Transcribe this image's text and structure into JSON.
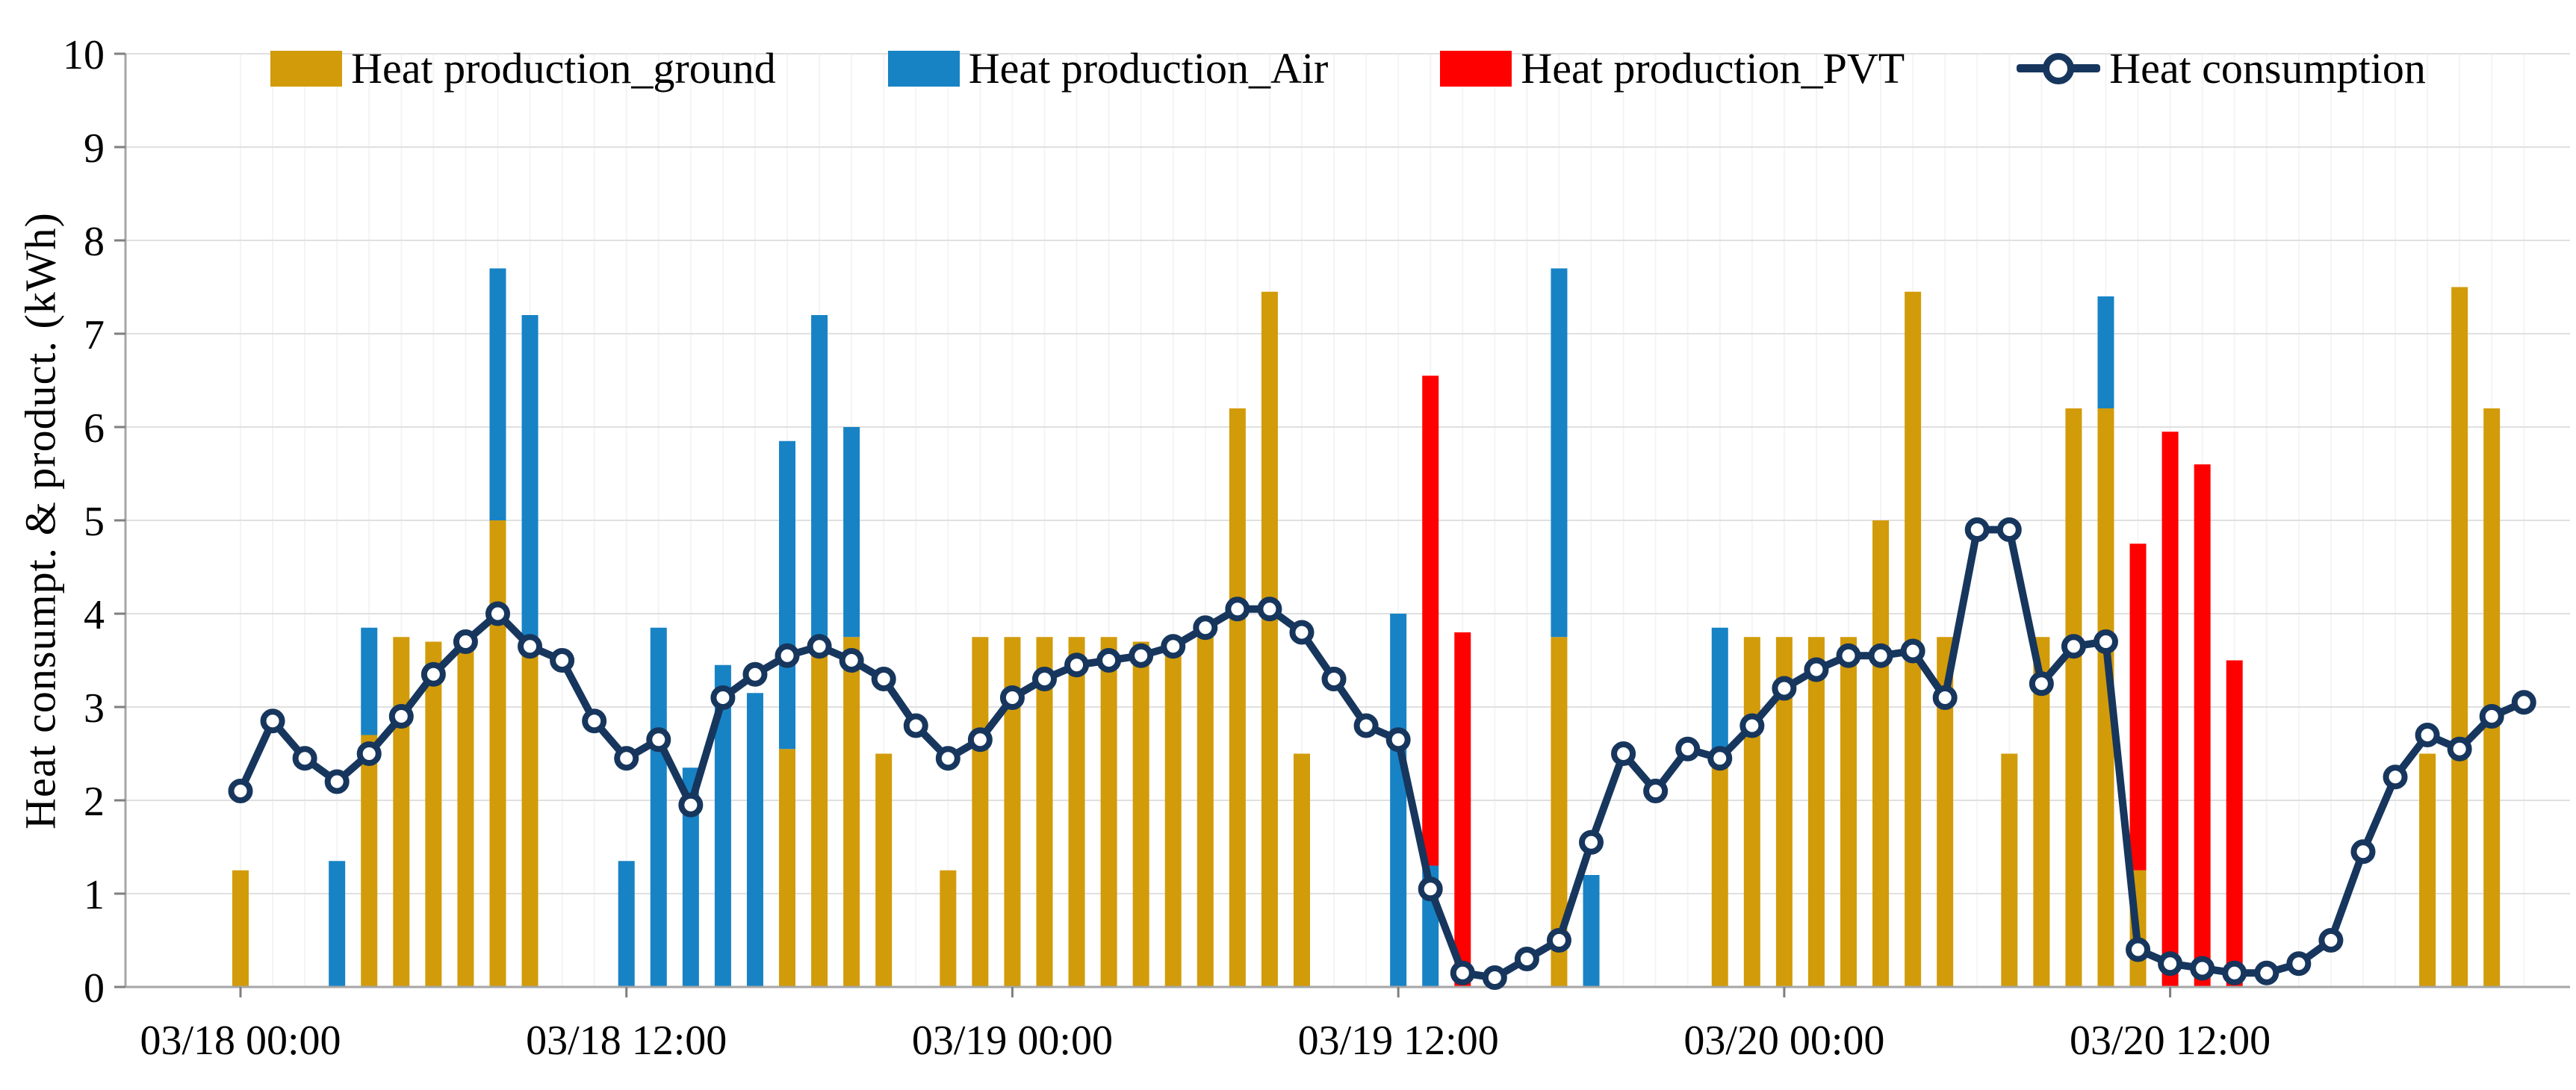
{
  "chart_data": {
    "type": "bar",
    "subtype": "stacked-bars-with-line-overlay",
    "title": "",
    "xlabel": "",
    "ylabel": "Heat consumpt. & product.  (kWh)",
    "ylim": [
      0,
      10
    ],
    "ytick_interval": 1,
    "yticks": [
      "0",
      "1",
      "2",
      "3",
      "4",
      "5",
      "6",
      "7",
      "8",
      "9",
      "10"
    ],
    "grid": "horizontal major on; faint hourly vertical minor on",
    "legend_position": "top-center",
    "xtick_indices": [
      0,
      12,
      24,
      36,
      48,
      60
    ],
    "xtick_labels": [
      "03/18 00:00",
      "03/18 12:00",
      "03/19 00:00",
      "03/19 12:00",
      "03/20 00:00",
      "03/20 12:00"
    ],
    "categories": [
      "03/18 00:00",
      "03/18 01:00",
      "03/18 02:00",
      "03/18 03:00",
      "03/18 04:00",
      "03/18 05:00",
      "03/18 06:00",
      "03/18 07:00",
      "03/18 08:00",
      "03/18 09:00",
      "03/18 10:00",
      "03/18 11:00",
      "03/18 12:00",
      "03/18 13:00",
      "03/18 14:00",
      "03/18 15:00",
      "03/18 16:00",
      "03/18 17:00",
      "03/18 18:00",
      "03/18 19:00",
      "03/18 20:00",
      "03/18 21:00",
      "03/18 22:00",
      "03/18 23:00",
      "03/19 00:00",
      "03/19 01:00",
      "03/19 02:00",
      "03/19 03:00",
      "03/19 04:00",
      "03/19 05:00",
      "03/19 06:00",
      "03/19 07:00",
      "03/19 08:00",
      "03/19 09:00",
      "03/19 10:00",
      "03/19 11:00",
      "03/19 12:00",
      "03/19 13:00",
      "03/19 14:00",
      "03/19 15:00",
      "03/19 16:00",
      "03/19 17:00",
      "03/19 18:00",
      "03/19 19:00",
      "03/19 20:00",
      "03/19 21:00",
      "03/19 22:00",
      "03/19 23:00",
      "03/20 00:00",
      "03/20 01:00",
      "03/20 02:00",
      "03/20 03:00",
      "03/20 04:00",
      "03/20 05:00",
      "03/20 06:00",
      "03/20 07:00",
      "03/20 08:00",
      "03/20 09:00",
      "03/20 10:00",
      "03/20 11:00",
      "03/20 12:00",
      "03/20 13:00",
      "03/20 14:00",
      "03/20 15:00",
      "03/20 16:00",
      "03/20 17:00",
      "03/20 18:00",
      "03/20 19:00",
      "03/20 20:00",
      "03/20 21:00",
      "03/20 22:00",
      "03/20 23:00"
    ],
    "series": [
      {
        "name": "Heat production_ground",
        "type": "bar",
        "stack": "production",
        "color": "#D29B0A",
        "values": [
          1.25,
          0,
          0,
          0,
          2.7,
          3.75,
          3.7,
          3.7,
          5,
          3.75,
          0,
          0,
          0,
          0,
          0,
          0,
          0,
          2.55,
          3.7,
          3.75,
          2.5,
          0,
          1.25,
          3.75,
          3.75,
          3.75,
          3.75,
          3.75,
          3.7,
          3.75,
          3.75,
          6.2,
          7.45,
          2.5,
          0,
          0,
          0,
          0,
          0,
          0,
          0,
          3.75,
          0,
          0,
          0,
          0,
          2.5,
          3.75,
          3.75,
          3.75,
          3.75,
          5,
          7.45,
          3.75,
          0,
          2.5,
          3.75,
          6.2,
          6.2,
          1.25,
          0,
          0,
          0,
          0,
          0,
          0,
          0,
          0,
          2.5,
          7.5,
          6.2,
          0
        ]
      },
      {
        "name": "Heat production_Air",
        "type": "bar",
        "stack": "production",
        "color": "#1783C5",
        "values": [
          0,
          0,
          0,
          1.35,
          1.15,
          0,
          0,
          0,
          2.7,
          3.45,
          0,
          0,
          1.35,
          3.85,
          2.35,
          3.45,
          3.15,
          3.3,
          3.5,
          2.25,
          0,
          0,
          0,
          0,
          0,
          0,
          0,
          0,
          0,
          0,
          0,
          0,
          0,
          0,
          0,
          0,
          4,
          1.3,
          0,
          0,
          0,
          3.95,
          1.2,
          0,
          0,
          0,
          1.35,
          0,
          0,
          0,
          0,
          0,
          0,
          0,
          0,
          0,
          0,
          0,
          1.2,
          0,
          0,
          0,
          0,
          0,
          0,
          0,
          0,
          0,
          0,
          0,
          0,
          0
        ]
      },
      {
        "name": "Heat production_PVT",
        "type": "bar",
        "stack": "production",
        "color": "#FF0000",
        "values": [
          0,
          0,
          0,
          0,
          0,
          0,
          0,
          0,
          0,
          0,
          0,
          0,
          0,
          0,
          0,
          0,
          0,
          0,
          0,
          0,
          0,
          0,
          0,
          0,
          0,
          0,
          0,
          0,
          0,
          0,
          0,
          0,
          0,
          0,
          0,
          0,
          0,
          5.25,
          3.8,
          0,
          0,
          0,
          0,
          0,
          0,
          0,
          0,
          0,
          0,
          0,
          0,
          0,
          0,
          0,
          0,
          0,
          0,
          0,
          0,
          3.5,
          5.95,
          5.6,
          3.5,
          0,
          0,
          0,
          0,
          0,
          0,
          0,
          0,
          0
        ]
      },
      {
        "name": "Heat consumption",
        "type": "line",
        "marker": "open-circle",
        "color": "#17365D",
        "values": [
          2.1,
          2.85,
          2.45,
          2.2,
          2.5,
          2.9,
          3.35,
          3.7,
          4,
          3.65,
          3.5,
          2.85,
          2.45,
          2.65,
          1.95,
          3.1,
          3.35,
          3.55,
          3.65,
          3.5,
          3.3,
          2.8,
          2.45,
          2.65,
          3.1,
          3.3,
          3.45,
          3.5,
          3.55,
          3.65,
          3.85,
          4.05,
          4.05,
          3.8,
          3.3,
          2.8,
          2.65,
          1.05,
          0.15,
          0.1,
          0.3,
          0.5,
          1.55,
          2.5,
          2.1,
          2.55,
          2.45,
          2.8,
          3.2,
          3.4,
          3.55,
          3.55,
          3.6,
          3.1,
          4.9,
          4.9,
          3.25,
          3.65,
          3.7,
          0.4,
          0.25,
          0.2,
          0.15,
          0.15,
          0.25,
          0.5,
          1.45,
          2.25,
          2.7,
          2.55,
          2.9,
          3.05
        ]
      }
    ],
    "style": {
      "background": "#FFFFFF",
      "gridline_color": "#E0E0E0",
      "minor_vertical_color": "#F4F4F4",
      "axis_color": "#A6A6A6",
      "tick_color": "#7F7F7F",
      "text_color": "#000000"
    }
  }
}
